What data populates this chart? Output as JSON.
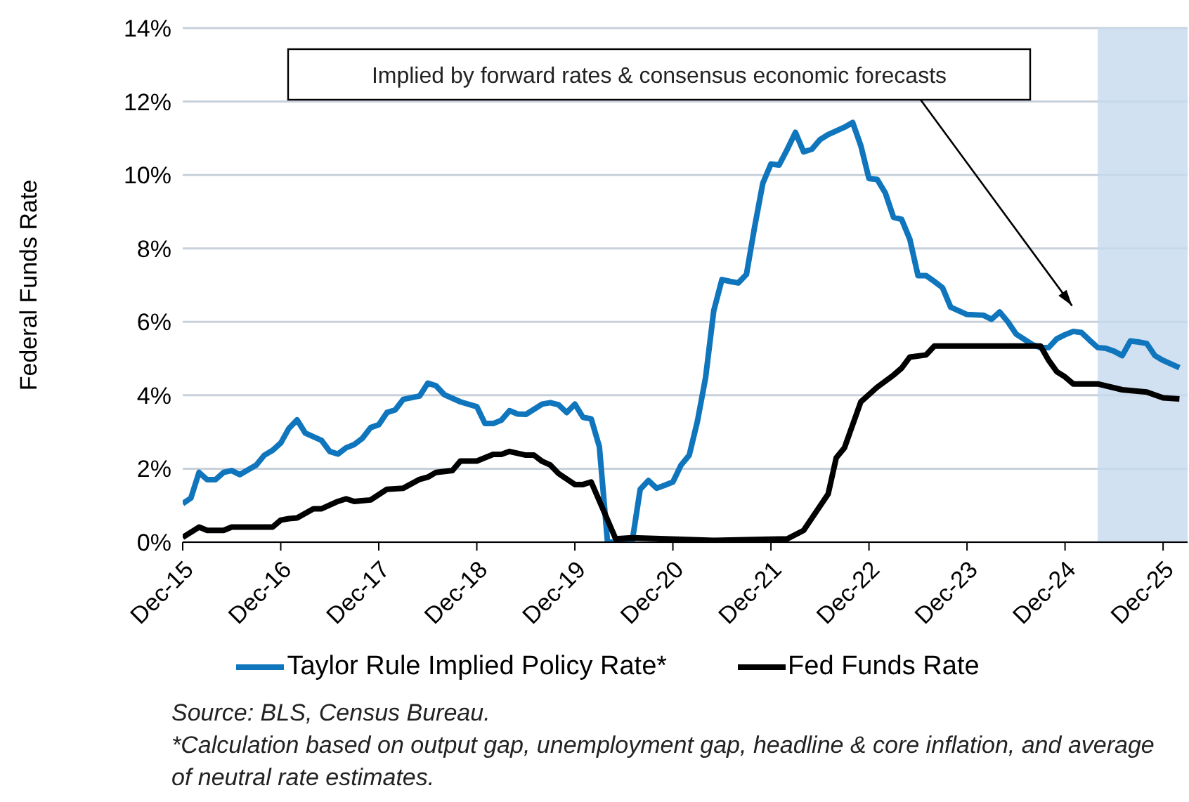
{
  "chart_data": {
    "type": "line",
    "ylabel": "Federal Funds Rate",
    "xlim": [
      "2015-12",
      "2026-03"
    ],
    "xticks": [
      {
        "value": "2015-12",
        "label": "Dec-15"
      },
      {
        "value": "2016-12",
        "label": "Dec-16"
      },
      {
        "value": "2017-12",
        "label": "Dec-17"
      },
      {
        "value": "2018-12",
        "label": "Dec-18"
      },
      {
        "value": "2019-12",
        "label": "Dec-19"
      },
      {
        "value": "2020-12",
        "label": "Dec-20"
      },
      {
        "value": "2021-12",
        "label": "Dec-21"
      },
      {
        "value": "2022-12",
        "label": "Dec-22"
      },
      {
        "value": "2023-12",
        "label": "Dec-23"
      },
      {
        "value": "2024-12",
        "label": "Dec-24"
      },
      {
        "value": "2025-12",
        "label": "Dec-25"
      }
    ],
    "ylim": [
      0,
      14
    ],
    "yticks": [
      {
        "value": 0,
        "label": "0%"
      },
      {
        "value": 2,
        "label": "2%"
      },
      {
        "value": 4,
        "label": "4%"
      },
      {
        "value": 6,
        "label": "6%"
      },
      {
        "value": 8,
        "label": "8%"
      },
      {
        "value": 10,
        "label": "10%"
      },
      {
        "value": 12,
        "label": "12%"
      },
      {
        "value": 14,
        "label": "14%"
      }
    ],
    "grid": "y",
    "legend": "bottom",
    "marker": "none",
    "line_style": "solid",
    "bands": [
      {
        "axis": "x",
        "from": "2025-04",
        "to": "2026-03",
        "color": "#c5daee"
      }
    ],
    "series": [
      {
        "name": "Taylor Rule Implied Policy Rate*",
        "color": "#0f75bc",
        "x": [
          "2015-12",
          "2016-01",
          "2016-02",
          "2016-03",
          "2016-04",
          "2016-05",
          "2016-06",
          "2016-07",
          "2016-09",
          "2016-10",
          "2016-11",
          "2016-12",
          "2017-01",
          "2017-02",
          "2017-03",
          "2017-05",
          "2017-06",
          "2017-07",
          "2017-08",
          "2017-09",
          "2017-10",
          "2017-11",
          "2017-12",
          "2018-01",
          "2018-02",
          "2018-03",
          "2018-05",
          "2018-06",
          "2018-07",
          "2018-08",
          "2018-10",
          "2018-12",
          "2019-01",
          "2019-02",
          "2019-03",
          "2019-04",
          "2019-05",
          "2019-06",
          "2019-08",
          "2019-09",
          "2019-10",
          "2019-11",
          "2019-12",
          "2020-01",
          "2020-02",
          "2020-03",
          "2020-04",
          "2020-05",
          "2020-06",
          "2020-07",
          "2020-08",
          "2020-09",
          "2020-10",
          "2020-11",
          "2020-12",
          "2021-01",
          "2021-02",
          "2021-03",
          "2021-04",
          "2021-05",
          "2021-06",
          "2021-07",
          "2021-08",
          "2021-09",
          "2021-10",
          "2021-11",
          "2021-12",
          "2022-01",
          "2022-02",
          "2022-03",
          "2022-04",
          "2022-05",
          "2022-06",
          "2022-07",
          "2022-08",
          "2022-09",
          "2022-10",
          "2022-11",
          "2022-12",
          "2023-01",
          "2023-02",
          "2023-03",
          "2023-04",
          "2023-05",
          "2023-06",
          "2023-07",
          "2023-08",
          "2023-09",
          "2023-10",
          "2023-12",
          "2024-02",
          "2024-03",
          "2024-04",
          "2024-05",
          "2024-06",
          "2024-08",
          "2024-09",
          "2024-10",
          "2024-11",
          "2024-12",
          "2025-01",
          "2025-02",
          "2025-03",
          "2025-04",
          "2025-05",
          "2025-06",
          "2025-07",
          "2025-08",
          "2025-09",
          "2025-10",
          "2025-11",
          "2025-12",
          "2026-01",
          "2026-02"
        ],
        "values": [
          1.05,
          1.2,
          1.9,
          1.7,
          1.7,
          1.9,
          1.95,
          1.84,
          2.1,
          2.37,
          2.5,
          2.7,
          3.1,
          3.33,
          2.97,
          2.77,
          2.47,
          2.4,
          2.57,
          2.66,
          2.83,
          3.12,
          3.2,
          3.53,
          3.6,
          3.89,
          3.98,
          4.33,
          4.26,
          4.02,
          3.82,
          3.69,
          3.23,
          3.23,
          3.32,
          3.58,
          3.49,
          3.48,
          3.76,
          3.8,
          3.74,
          3.53,
          3.76,
          3.4,
          3.36,
          2.6,
          0,
          0,
          0,
          0,
          1.44,
          1.68,
          1.47,
          1.55,
          1.64,
          2.1,
          2.37,
          3.29,
          4.48,
          6.3,
          7.15,
          7.1,
          7.06,
          7.29,
          8.58,
          9.77,
          10.3,
          10.27,
          10.7,
          11.16,
          10.63,
          10.7,
          10.96,
          11.1,
          11.2,
          11.3,
          11.43,
          10.8,
          9.9,
          9.88,
          9.51,
          8.85,
          8.79,
          8.25,
          7.26,
          7.26,
          7.1,
          6.93,
          6.4,
          6.2,
          6.18,
          6.07,
          6.27,
          6.0,
          5.67,
          5.38,
          5.3,
          5.3,
          5.54,
          5.65,
          5.74,
          5.71,
          5.5,
          5.3,
          5.28,
          5.2,
          5.08,
          5.48,
          5.45,
          5.41,
          5.08,
          4.95,
          4.85,
          4.75
        ]
      },
      {
        "name": "Fed Funds Rate",
        "color": "#000000",
        "x": [
          "2015-12",
          "2016-02",
          "2016-03",
          "2016-05",
          "2016-06",
          "2016-11",
          "2016-12",
          "2017-01",
          "2017-02",
          "2017-04",
          "2017-05",
          "2017-07",
          "2017-08",
          "2017-09",
          "2017-11",
          "2018-01",
          "2018-03",
          "2018-05",
          "2018-06",
          "2018-07",
          "2018-09",
          "2018-10",
          "2018-12",
          "2019-02",
          "2019-03",
          "2019-04",
          "2019-06",
          "2019-07",
          "2019-08",
          "2019-09",
          "2019-10",
          "2019-12",
          "2020-01",
          "2020-02",
          "2020-05",
          "2020-07",
          "2021-05",
          "2022-02",
          "2022-04",
          "2022-07",
          "2022-08",
          "2022-09",
          "2022-11",
          "2023-01",
          "2023-03",
          "2023-04",
          "2023-05",
          "2023-07",
          "2023-08",
          "2024-09",
          "2024-10",
          "2024-11",
          "2024-12",
          "2025-01",
          "2025-04",
          "2025-07",
          "2025-10",
          "2025-12",
          "2026-02"
        ],
        "values": [
          0.13,
          0.41,
          0.32,
          0.32,
          0.41,
          0.41,
          0.6,
          0.64,
          0.66,
          0.91,
          0.91,
          1.11,
          1.18,
          1.11,
          1.15,
          1.44,
          1.47,
          1.71,
          1.77,
          1.9,
          1.95,
          2.21,
          2.21,
          2.39,
          2.39,
          2.47,
          2.37,
          2.37,
          2.2,
          2.1,
          1.87,
          1.57,
          1.57,
          1.64,
          0.09,
          0.12,
          0.05,
          0.09,
          0.32,
          1.31,
          2.3,
          2.57,
          3.82,
          4.22,
          4.55,
          4.74,
          5.04,
          5.1,
          5.34,
          5.34,
          4.95,
          4.64,
          4.5,
          4.31,
          4.31,
          4.15,
          4.09,
          3.93,
          3.9
        ]
      }
    ],
    "annotations": [
      "Implied by forward rates & consensus economic forecasts",
      "Source: BLS, Census Bureau.",
      "*Calculation based on output gap, unemployment gap, headline & core inflation, and average of neutral rate estimates."
    ]
  }
}
